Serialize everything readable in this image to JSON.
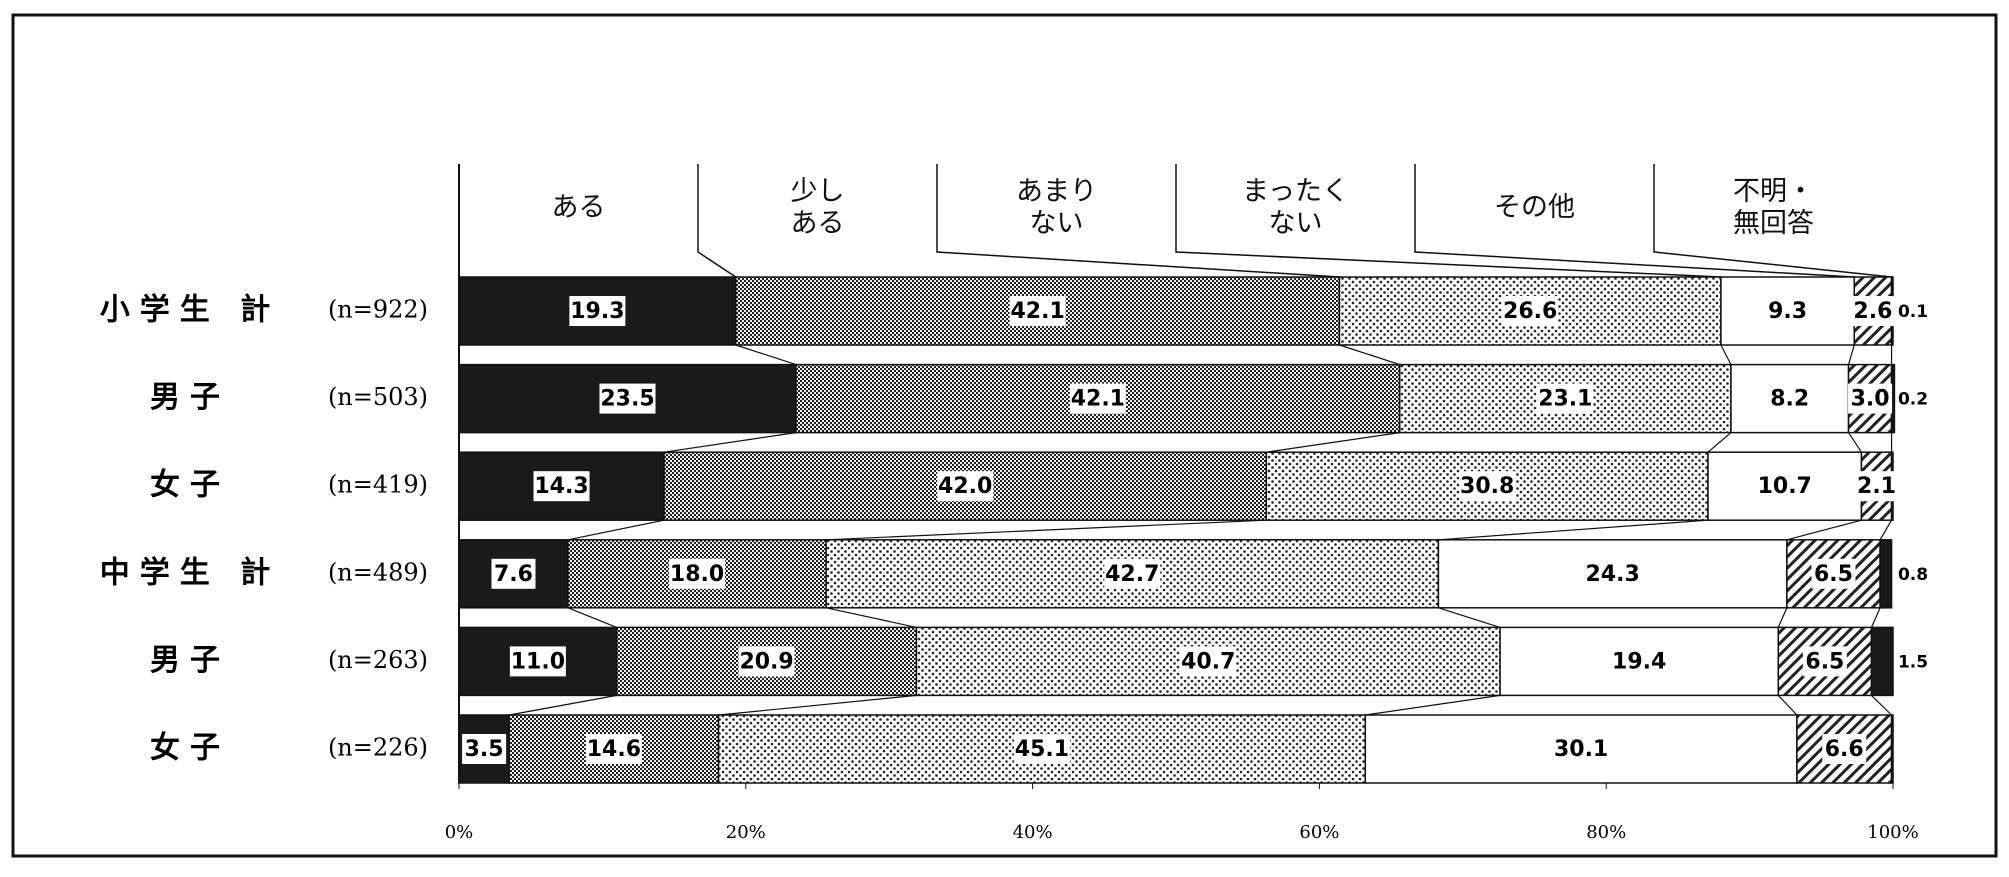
{
  "chart_data": {
    "type": "bar",
    "orientation": "horizontal",
    "stacked": true,
    "categories": [
      "小学生 計",
      "男子",
      "女子",
      "中学生 計",
      "男子",
      "女子"
    ],
    "sample_sizes": [
      "(n=922)",
      "(n=503)",
      "(n=419)",
      "(n=489)",
      "(n=263)",
      "(n=226)"
    ],
    "series": [
      {
        "name": "ある",
        "color": "#1a1a1a",
        "pattern": "solid",
        "values": [
          19.3,
          23.5,
          14.3,
          7.6,
          11.0,
          3.5
        ],
        "value_labels": [
          "19.3",
          "23.5",
          "14.3",
          "7.6",
          "11.0",
          "3.5"
        ]
      },
      {
        "name": "少し\nある",
        "color": "#555555",
        "pattern": "checker",
        "values": [
          42.1,
          42.1,
          42.0,
          18.0,
          20.9,
          14.6
        ],
        "value_labels": [
          "42.1",
          "42.1",
          "42.0",
          "18.0",
          "20.9",
          "14.6"
        ]
      },
      {
        "name": "あまり\nない",
        "color": "#bbbbbb",
        "pattern": "dots",
        "values": [
          26.6,
          23.1,
          30.8,
          42.7,
          40.7,
          45.1
        ],
        "value_labels": [
          "26.6",
          "23.1",
          "30.8",
          "42.7",
          "40.7",
          "45.1"
        ]
      },
      {
        "name": "まったく\nない",
        "color": "#ffffff",
        "pattern": "solid",
        "values": [
          9.3,
          8.2,
          10.7,
          24.3,
          19.4,
          30.1
        ],
        "value_labels": [
          "9.3",
          "8.2",
          "10.7",
          "24.3",
          "19.4",
          "30.1"
        ]
      },
      {
        "name": "その他",
        "color": "#888888",
        "pattern": "hatch",
        "values": [
          2.6,
          3.0,
          2.1,
          6.5,
          6.5,
          6.6
        ],
        "value_labels": [
          "2.6",
          "3.0",
          "2.1",
          "6.5",
          "6.5",
          "6.6"
        ]
      },
      {
        "name": "不明・\n無回答",
        "color": "#1a1a1a",
        "pattern": "solid",
        "values": [
          0.1,
          0.2,
          0.1,
          0.8,
          1.5,
          0.1
        ],
        "value_labels": [
          "0.1",
          "0.2",
          null,
          "0.8",
          "1.5",
          null
        ]
      }
    ],
    "xlim": [
      0,
      100
    ],
    "xticks": [
      {
        "value": 0,
        "label": "0%"
      },
      {
        "value": 20,
        "label": "20%"
      },
      {
        "value": 40,
        "label": "40%"
      },
      {
        "value": 60,
        "label": "60%"
      },
      {
        "value": 80,
        "label": "80%"
      },
      {
        "value": 100,
        "label": "100%"
      }
    ]
  }
}
